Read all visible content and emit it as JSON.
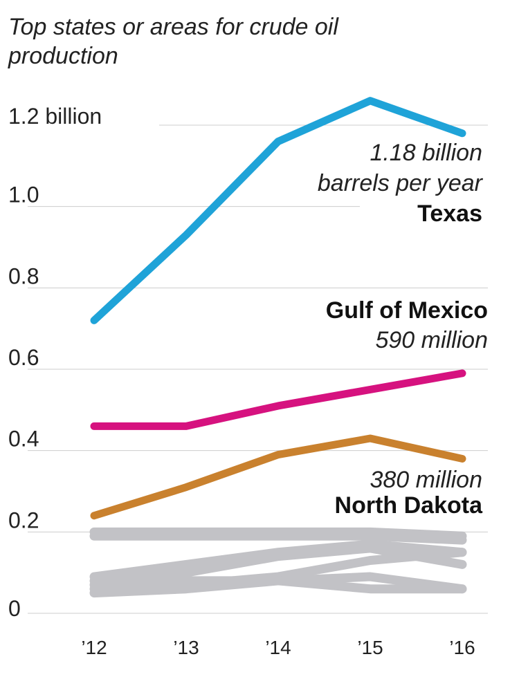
{
  "chart_data": {
    "type": "line",
    "title": "Top states or areas for crude oil production",
    "xlabel": "",
    "ylabel": "",
    "categories": [
      "’12",
      "’13",
      "’14",
      "’15",
      "’16"
    ],
    "y_tick_labels": [
      "0",
      "0.2",
      "0.4",
      "0.6",
      "0.8",
      "1.0",
      "1.2 billion"
    ],
    "y_ticks": [
      0,
      0.2,
      0.4,
      0.6,
      0.8,
      1.0,
      1.2
    ],
    "ylim": [
      0,
      1.2
    ],
    "grid": true,
    "series": [
      {
        "name": "Texas",
        "color": "#1fa3d8",
        "values": [
          0.72,
          0.93,
          1.16,
          1.26,
          1.18
        ]
      },
      {
        "name": "Gulf of Mexico",
        "color": "#d6127f",
        "values": [
          0.46,
          0.46,
          0.51,
          0.55,
          0.59
        ]
      },
      {
        "name": "North Dakota",
        "color": "#c9812e",
        "values": [
          0.24,
          0.31,
          0.39,
          0.43,
          0.38
        ]
      },
      {
        "color": "#c2c2c6",
        "values": [
          0.19,
          0.19,
          0.19,
          0.19,
          0.18
        ]
      },
      {
        "color": "#c2c2c6",
        "values": [
          0.2,
          0.2,
          0.2,
          0.2,
          0.19
        ]
      },
      {
        "color": "#c2c2c6",
        "values": [
          0.09,
          0.12,
          0.15,
          0.17,
          0.15
        ]
      },
      {
        "color": "#c2c2c6",
        "values": [
          0.08,
          0.1,
          0.14,
          0.16,
          0.12
        ]
      },
      {
        "color": "#c2c2c6",
        "values": [
          0.07,
          0.07,
          0.09,
          0.13,
          0.15
        ]
      },
      {
        "color": "#c2c2c6",
        "values": [
          0.06,
          0.08,
          0.08,
          0.09,
          0.06
        ]
      },
      {
        "color": "#c2c2c6",
        "values": [
          0.05,
          0.06,
          0.08,
          0.06,
          0.06
        ]
      }
    ],
    "annotations": [
      {
        "series": "Texas",
        "lines": [
          {
            "text": "1.18 billion",
            "style": "italic"
          },
          {
            "text": "barrels per year",
            "style": "italic"
          },
          {
            "text": "Texas",
            "style": "bold"
          }
        ]
      },
      {
        "series": "Gulf of Mexico",
        "lines": [
          {
            "text": "Gulf of Mexico",
            "style": "bold"
          },
          {
            "text": "590 million",
            "style": "italic"
          }
        ]
      },
      {
        "series": "North Dakota",
        "lines": [
          {
            "text": "380 million",
            "style": "italic"
          },
          {
            "text": "North Dakota",
            "style": "bold"
          }
        ]
      }
    ],
    "colors": {
      "grid": "#cccccc",
      "text": "#222222"
    }
  }
}
